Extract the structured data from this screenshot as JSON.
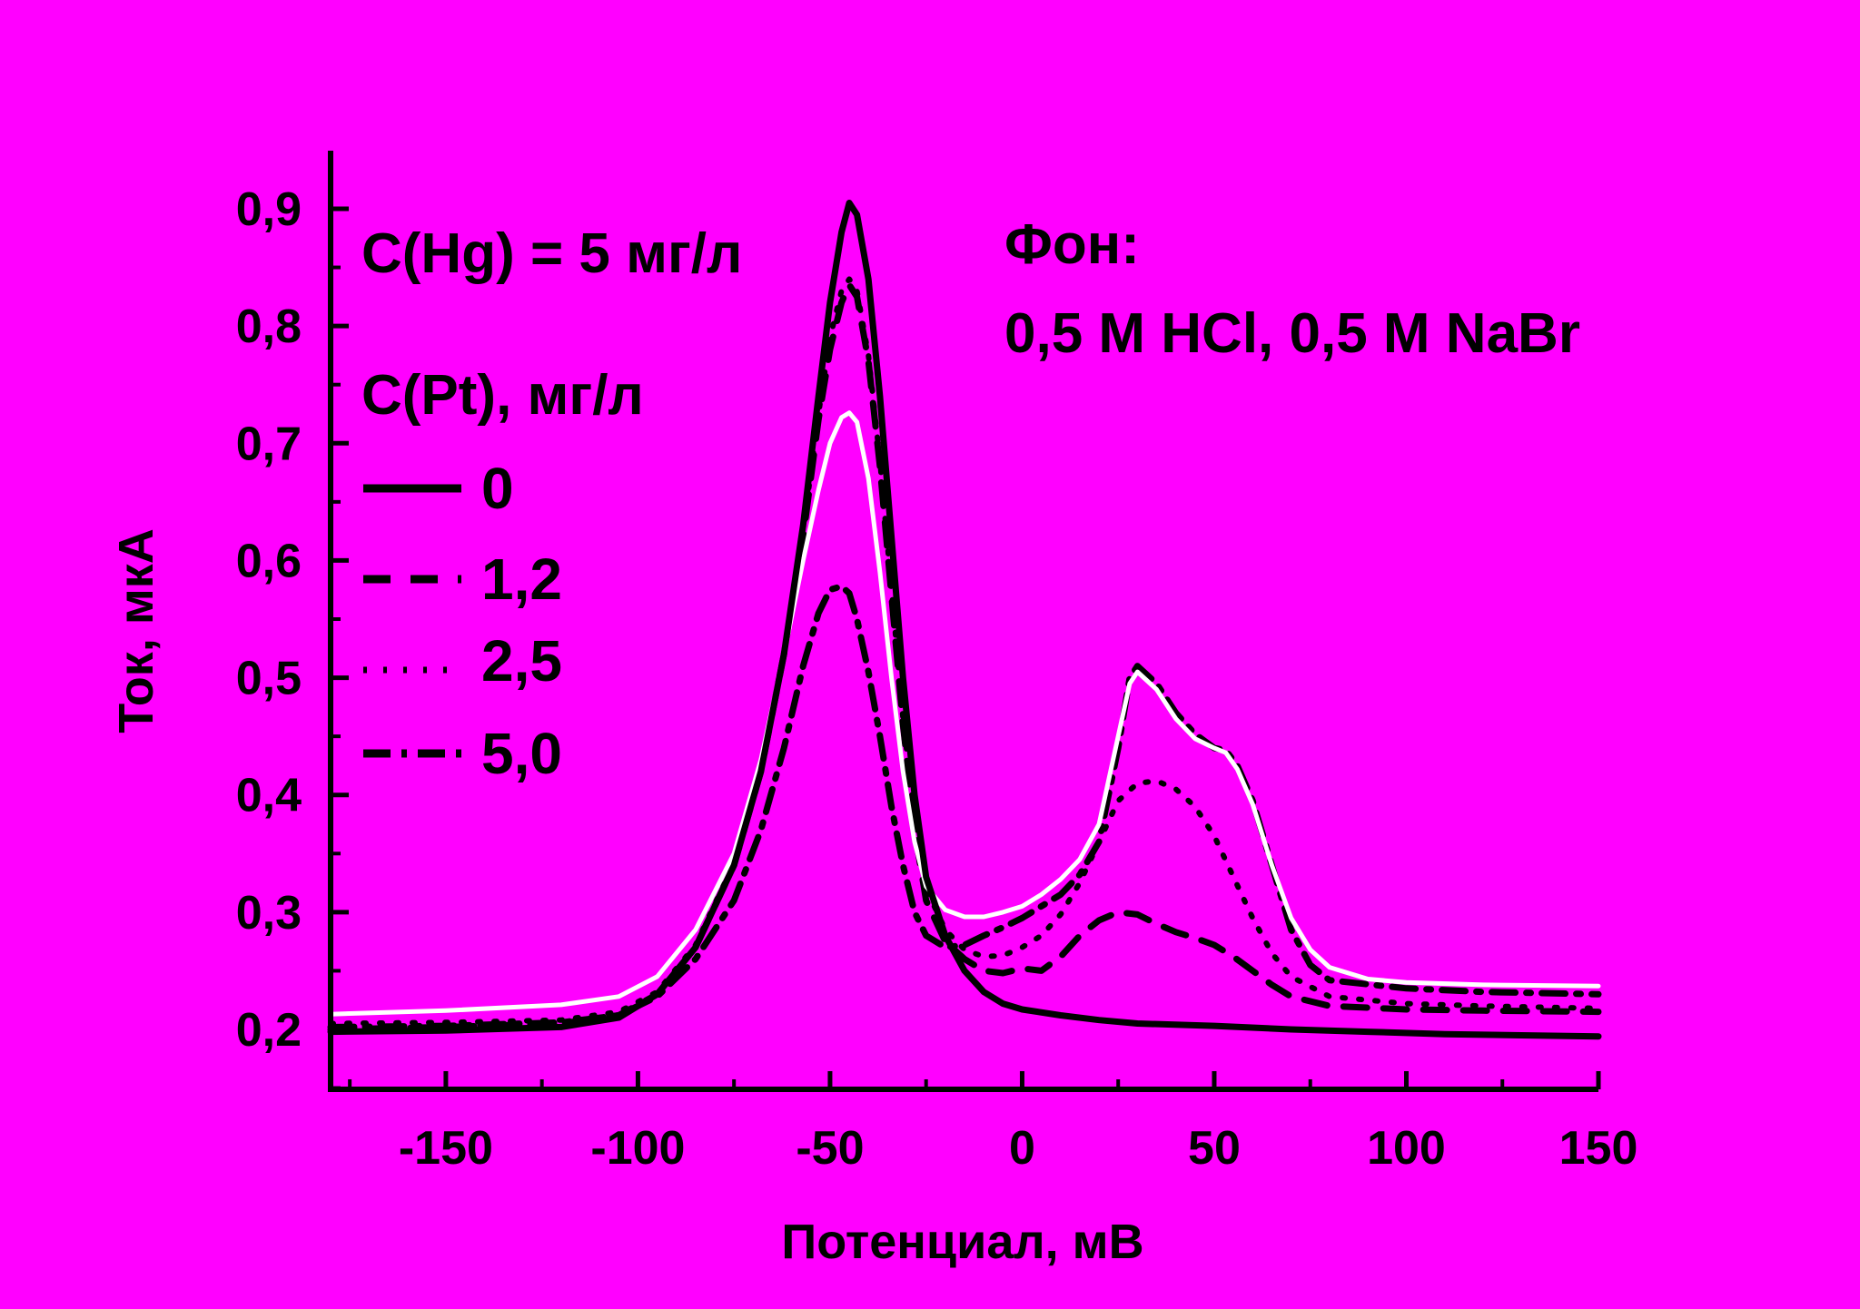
{
  "chart_data": {
    "type": "line",
    "title": "",
    "xlabel": "Потенциал, мВ",
    "ylabel": "Ток, мкА",
    "xlim": [
      -180,
      150
    ],
    "ylim": [
      0.15,
      0.95
    ],
    "x_ticks": [
      -150,
      -100,
      -50,
      0,
      50,
      100,
      150
    ],
    "x_tick_labels": [
      "-150",
      "-100",
      "-50",
      "0",
      "50",
      "100",
      "150"
    ],
    "y_ticks": [
      0.2,
      0.3,
      0.4,
      0.5,
      0.6,
      0.7,
      0.8,
      0.9
    ],
    "y_tick_labels": [
      "0,2",
      "0,3",
      "0,4",
      "0,5",
      "0,6",
      "0,7",
      "0,8",
      "0,9"
    ],
    "grid": false,
    "legend_placement": "top-left",
    "legend_title": "C(Pt), мг/л",
    "annotations": {
      "hg": "C(Hg) = 5 мг/л",
      "background_label": "Фон:",
      "background_value": "0,5 M HCl, 0,5 M NaBr"
    },
    "series": [
      {
        "name": "0",
        "color": "#000000",
        "style": "solid",
        "points": [
          [
            -180,
            0.198
          ],
          [
            -150,
            0.199
          ],
          [
            -120,
            0.202
          ],
          [
            -105,
            0.21
          ],
          [
            -95,
            0.23
          ],
          [
            -85,
            0.27
          ],
          [
            -75,
            0.34
          ],
          [
            -68,
            0.42
          ],
          [
            -62,
            0.52
          ],
          [
            -57,
            0.63
          ],
          [
            -53,
            0.74
          ],
          [
            -50,
            0.82
          ],
          [
            -47,
            0.88
          ],
          [
            -45,
            0.905
          ],
          [
            -43,
            0.895
          ],
          [
            -40,
            0.84
          ],
          [
            -37,
            0.74
          ],
          [
            -34,
            0.62
          ],
          [
            -31,
            0.5
          ],
          [
            -28,
            0.4
          ],
          [
            -25,
            0.33
          ],
          [
            -20,
            0.28
          ],
          [
            -15,
            0.25
          ],
          [
            -10,
            0.232
          ],
          [
            -5,
            0.222
          ],
          [
            0,
            0.217
          ],
          [
            10,
            0.212
          ],
          [
            20,
            0.208
          ],
          [
            30,
            0.205
          ],
          [
            50,
            0.203
          ],
          [
            70,
            0.2
          ],
          [
            90,
            0.198
          ],
          [
            110,
            0.196
          ],
          [
            130,
            0.195
          ],
          [
            150,
            0.194
          ]
        ]
      },
      {
        "name": "1,2",
        "color": "#000000",
        "style": "dashed",
        "points": [
          [
            -180,
            0.2
          ],
          [
            -150,
            0.202
          ],
          [
            -120,
            0.205
          ],
          [
            -105,
            0.212
          ],
          [
            -95,
            0.23
          ],
          [
            -85,
            0.27
          ],
          [
            -75,
            0.34
          ],
          [
            -68,
            0.42
          ],
          [
            -62,
            0.52
          ],
          [
            -57,
            0.62
          ],
          [
            -53,
            0.72
          ],
          [
            -50,
            0.78
          ],
          [
            -47,
            0.82
          ],
          [
            -45,
            0.835
          ],
          [
            -43,
            0.825
          ],
          [
            -40,
            0.77
          ],
          [
            -37,
            0.68
          ],
          [
            -34,
            0.57
          ],
          [
            -31,
            0.46
          ],
          [
            -28,
            0.37
          ],
          [
            -25,
            0.31
          ],
          [
            -20,
            0.275
          ],
          [
            -15,
            0.26
          ],
          [
            -10,
            0.25
          ],
          [
            -5,
            0.248
          ],
          [
            0,
            0.252
          ],
          [
            5,
            0.25
          ],
          [
            10,
            0.262
          ],
          [
            15,
            0.28
          ],
          [
            20,
            0.293
          ],
          [
            25,
            0.3
          ],
          [
            30,
            0.298
          ],
          [
            35,
            0.29
          ],
          [
            40,
            0.283
          ],
          [
            45,
            0.278
          ],
          [
            50,
            0.272
          ],
          [
            55,
            0.262
          ],
          [
            60,
            0.25
          ],
          [
            65,
            0.238
          ],
          [
            70,
            0.228
          ],
          [
            80,
            0.22
          ],
          [
            100,
            0.217
          ],
          [
            120,
            0.216
          ],
          [
            150,
            0.215
          ]
        ]
      },
      {
        "name": "2,5",
        "color": "#000000",
        "style": "dotted",
        "points": [
          [
            -180,
            0.205
          ],
          [
            -150,
            0.206
          ],
          [
            -120,
            0.208
          ],
          [
            -105,
            0.215
          ],
          [
            -95,
            0.232
          ],
          [
            -85,
            0.272
          ],
          [
            -75,
            0.342
          ],
          [
            -68,
            0.422
          ],
          [
            -62,
            0.522
          ],
          [
            -57,
            0.625
          ],
          [
            -53,
            0.725
          ],
          [
            -50,
            0.79
          ],
          [
            -47,
            0.83
          ],
          [
            -45,
            0.84
          ],
          [
            -43,
            0.83
          ],
          [
            -40,
            0.775
          ],
          [
            -37,
            0.685
          ],
          [
            -34,
            0.575
          ],
          [
            -31,
            0.465
          ],
          [
            -28,
            0.38
          ],
          [
            -25,
            0.32
          ],
          [
            -20,
            0.285
          ],
          [
            -15,
            0.268
          ],
          [
            -10,
            0.262
          ],
          [
            -5,
            0.263
          ],
          [
            0,
            0.27
          ],
          [
            5,
            0.28
          ],
          [
            10,
            0.298
          ],
          [
            15,
            0.325
          ],
          [
            20,
            0.36
          ],
          [
            25,
            0.395
          ],
          [
            30,
            0.41
          ],
          [
            35,
            0.412
          ],
          [
            40,
            0.405
          ],
          [
            45,
            0.39
          ],
          [
            50,
            0.365
          ],
          [
            55,
            0.33
          ],
          [
            60,
            0.295
          ],
          [
            65,
            0.265
          ],
          [
            70,
            0.245
          ],
          [
            80,
            0.228
          ],
          [
            100,
            0.222
          ],
          [
            120,
            0.22
          ],
          [
            150,
            0.218
          ]
        ]
      },
      {
        "name": "5,0",
        "color": "#000000",
        "style": "dashdot",
        "points": [
          [
            -180,
            0.202
          ],
          [
            -150,
            0.203
          ],
          [
            -120,
            0.206
          ],
          [
            -105,
            0.212
          ],
          [
            -95,
            0.228
          ],
          [
            -85,
            0.26
          ],
          [
            -75,
            0.31
          ],
          [
            -68,
            0.37
          ],
          [
            -62,
            0.44
          ],
          [
            -57,
            0.51
          ],
          [
            -53,
            0.555
          ],
          [
            -50,
            0.575
          ],
          [
            -47,
            0.578
          ],
          [
            -45,
            0.572
          ],
          [
            -43,
            0.55
          ],
          [
            -40,
            0.505
          ],
          [
            -37,
            0.45
          ],
          [
            -34,
            0.39
          ],
          [
            -31,
            0.34
          ],
          [
            -28,
            0.3
          ],
          [
            -25,
            0.28
          ],
          [
            -20,
            0.27
          ],
          [
            -15,
            0.272
          ],
          [
            -10,
            0.28
          ],
          [
            -5,
            0.287
          ],
          [
            0,
            0.295
          ],
          [
            5,
            0.305
          ],
          [
            10,
            0.315
          ],
          [
            15,
            0.332
          ],
          [
            20,
            0.36
          ],
          [
            25,
            0.44
          ],
          [
            28,
            0.5
          ],
          [
            30,
            0.51
          ],
          [
            35,
            0.495
          ],
          [
            40,
            0.47
          ],
          [
            45,
            0.452
          ],
          [
            50,
            0.44
          ],
          [
            53,
            0.438
          ],
          [
            56,
            0.425
          ],
          [
            60,
            0.395
          ],
          [
            65,
            0.34
          ],
          [
            70,
            0.285
          ],
          [
            75,
            0.255
          ],
          [
            80,
            0.242
          ],
          [
            100,
            0.235
          ],
          [
            120,
            0.232
          ],
          [
            150,
            0.23
          ]
        ]
      },
      {
        "name": "",
        "color": "#FFFFFF",
        "style": "solid",
        "points": [
          [
            -180,
            0.213
          ],
          [
            -150,
            0.216
          ],
          [
            -120,
            0.221
          ],
          [
            -105,
            0.228
          ],
          [
            -95,
            0.245
          ],
          [
            -85,
            0.285
          ],
          [
            -75,
            0.35
          ],
          [
            -68,
            0.43
          ],
          [
            -62,
            0.52
          ],
          [
            -57,
            0.6
          ],
          [
            -53,
            0.66
          ],
          [
            -50,
            0.7
          ],
          [
            -47,
            0.722
          ],
          [
            -45,
            0.726
          ],
          [
            -43,
            0.718
          ],
          [
            -40,
            0.67
          ],
          [
            -37,
            0.59
          ],
          [
            -34,
            0.5
          ],
          [
            -31,
            0.42
          ],
          [
            -28,
            0.36
          ],
          [
            -25,
            0.322
          ],
          [
            -20,
            0.302
          ],
          [
            -15,
            0.296
          ],
          [
            -10,
            0.296
          ],
          [
            -5,
            0.3
          ],
          [
            0,
            0.305
          ],
          [
            5,
            0.315
          ],
          [
            10,
            0.328
          ],
          [
            15,
            0.345
          ],
          [
            20,
            0.375
          ],
          [
            25,
            0.45
          ],
          [
            28,
            0.495
          ],
          [
            30,
            0.505
          ],
          [
            35,
            0.49
          ],
          [
            40,
            0.465
          ],
          [
            45,
            0.448
          ],
          [
            50,
            0.44
          ],
          [
            53,
            0.436
          ],
          [
            56,
            0.422
          ],
          [
            60,
            0.392
          ],
          [
            65,
            0.34
          ],
          [
            70,
            0.295
          ],
          [
            75,
            0.268
          ],
          [
            80,
            0.253
          ],
          [
            90,
            0.243
          ],
          [
            100,
            0.24
          ],
          [
            120,
            0.238
          ],
          [
            150,
            0.237
          ]
        ]
      }
    ]
  }
}
